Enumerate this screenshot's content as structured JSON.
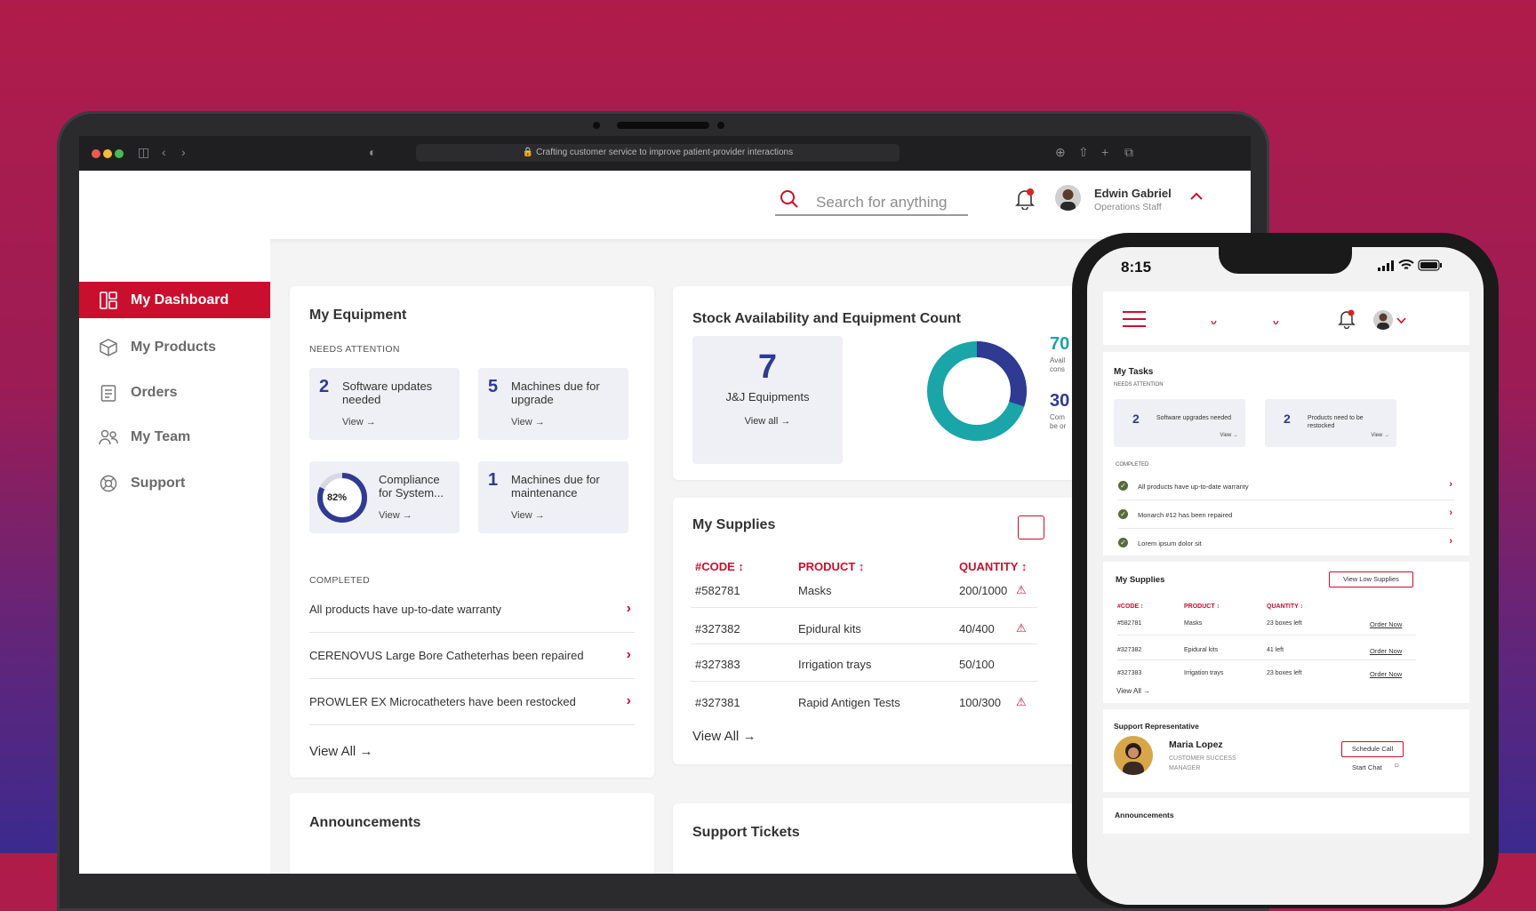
{
  "browser": {
    "url": "Crafting customer service to improve patient-provider interactions"
  },
  "header": {
    "search_placeholder": "Search for anything",
    "user_name": "Edwin Gabriel",
    "user_role": "Operations Staff"
  },
  "sidebar": {
    "items": [
      {
        "label": "My Dashboard"
      },
      {
        "label": "My Products"
      },
      {
        "label": "Orders"
      },
      {
        "label": "My Team"
      },
      {
        "label": "Support"
      }
    ]
  },
  "equipment": {
    "title": "My Equipment",
    "needs_attention_label": "NEEDS ATTENTION",
    "tiles": [
      {
        "num": "2",
        "text": "Software updates needed",
        "view": "View →"
      },
      {
        "num": "5",
        "text": "Machines due for upgrade",
        "view": "View →"
      },
      {
        "num": "82%",
        "text": "Compliance for System...",
        "view": "View →",
        "progress": 0.82
      },
      {
        "num": "1",
        "text": "Machines due for maintenance",
        "view": "View →"
      }
    ],
    "completed_label": "COMPLETED",
    "completed": [
      "All products have up-to-date warranty",
      "CERENOVUS Large Bore Catheterhas been repaired",
      "PROWLER EX Microcatheters have been restocked"
    ],
    "view_all": "View All"
  },
  "stock": {
    "title": "Stock Availability and Equipment Count",
    "count": "7",
    "count_label": "J&J Equipments",
    "view_all": "View all →",
    "donut_share": 0.3,
    "stat1": "70",
    "stat1_label_a": "Avail",
    "stat1_label_b": "cons",
    "stat2": "30",
    "stat2_label_a": "Com",
    "stat2_label_b": "be or"
  },
  "supplies": {
    "title": "My Supplies",
    "columns": [
      "#CODE ↕",
      "PRODUCT ↕",
      "QUANTITY ↕"
    ],
    "rows": [
      {
        "code": "#582781",
        "product": "Masks",
        "qty": "200/1000",
        "warn": "⚠"
      },
      {
        "code": "#327382",
        "product": "Epidural kits",
        "qty": "40/400",
        "warn": "⚠"
      },
      {
        "code": "#327383",
        "product": "Irrigation trays",
        "qty": "50/100",
        "warn": ""
      },
      {
        "code": "#327381",
        "product": "Rapid Antigen Tests",
        "qty": "100/300",
        "warn": "⚠"
      }
    ],
    "view_all": "View All"
  },
  "announcements": {
    "title": "Announcements"
  },
  "support_tickets": {
    "title": "Support Tickets"
  },
  "phone": {
    "time": "8:15",
    "tasks_title": "My Tasks",
    "needs_attention": "NEEDS ATTENTION",
    "tiles": [
      {
        "num": "2",
        "text": "Software upgrades needed",
        "view": "View →"
      },
      {
        "num": "2",
        "text": "Products need to be restocked",
        "view": "View →"
      }
    ],
    "completed_label": "COMPLETED",
    "completed": [
      "All products have up-to-date warranty",
      "Monarch #12 has been repaired",
      "Lorem ipsum dolor sit"
    ],
    "supplies_title": "My Supplies",
    "view_low": "View Low Supplies",
    "columns": [
      "#CODE ↕",
      "PRODUCT ↕",
      "QUANTITY ↕"
    ],
    "rows": [
      {
        "code": "#582781",
        "product": "Masks",
        "qty": "23 boxes left",
        "action": "Order Now"
      },
      {
        "code": "#327382",
        "product": "Epidural kits",
        "qty": "41 left",
        "action": "Order Now"
      },
      {
        "code": "#327383",
        "product": "Irrigation trays",
        "qty": "23 boxes left",
        "action": "Order Now"
      }
    ],
    "view_all": "View All →",
    "rep_title": "Support Representative",
    "rep_name": "Maria Lopez",
    "rep_role_a": "CUSTOMER SUCCESS",
    "rep_role_b": "MANAGER",
    "schedule": "Schedule Call",
    "chat": "Start Chat",
    "announcements": "Announcements"
  },
  "colors": {
    "accent": "#c8102e",
    "navy": "#2f3a92",
    "teal": "#1aa5a8"
  }
}
